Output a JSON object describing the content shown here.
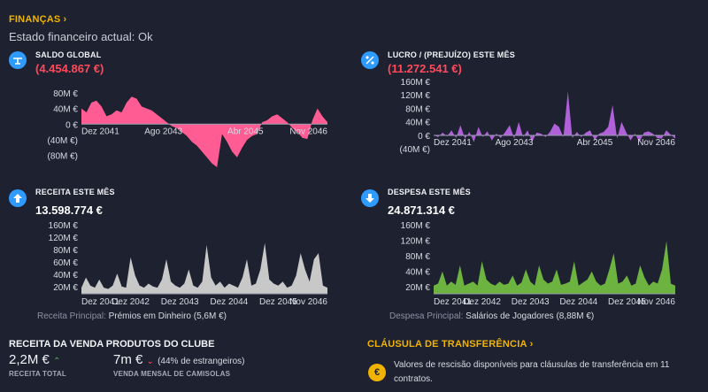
{
  "finances": {
    "title": "FINANÇAS",
    "status_label": "Estado financeiro actual:",
    "status_value": "Ok"
  },
  "panels": {
    "saldo": {
      "label": "SALDO GLOBAL",
      "value": "(4.454.867 €)",
      "color": "#ff4a5c",
      "icon": "balance-icon"
    },
    "lucro": {
      "label": "LUCRO / (PREJUÍZO) ESTE MÊS",
      "value": "(11.272.541 €)",
      "color": "#ff4a5c",
      "icon": "percent-icon"
    },
    "receita": {
      "label": "RECEITA ESTE MÊS",
      "value": "13.598.774 €",
      "icon": "arrow-up-icon",
      "caption_label": "Receita Principal:",
      "caption_value": "Prémios em Dinheiro (5,6M €)"
    },
    "despesa": {
      "label": "DESPESA ESTE MÊS",
      "value": "24.871.314 €",
      "icon": "arrow-down-icon",
      "caption_label": "Despesa Principal:",
      "caption_value": "Salários de Jogadores (8,88M €)"
    }
  },
  "merch": {
    "title": "RECEITA DA VENDA PRODUTOS DO CLUBE",
    "total_value": "2,2M €",
    "total_label": "RECEITA TOTAL",
    "shirts_value": "7m €",
    "shirts_note": "(44% de estrangeiros)",
    "shirts_label": "VENDA MENSAL DE CAMISOLAS"
  },
  "clause": {
    "title": "CLÁUSULA DE TRANSFERÊNCIA",
    "text": "Valores de rescisão disponíveis para cláusulas de transferência em 11 contratos."
  },
  "chart_data": [
    {
      "id": "saldo",
      "type": "area",
      "color": "#ff5c93",
      "y_ticks": [
        "80M €",
        "40M €",
        "0 €",
        "(40M €)",
        "(80M €)"
      ],
      "ylim": [
        -110,
        100
      ],
      "x_ticks": [
        "Dez 2041",
        "Ago 2043",
        "Abr 2045",
        "Nov 2046"
      ],
      "values": [
        40,
        30,
        55,
        60,
        45,
        20,
        25,
        35,
        30,
        55,
        70,
        65,
        45,
        40,
        35,
        25,
        15,
        5,
        -5,
        -10,
        -20,
        -30,
        -45,
        -55,
        -70,
        -85,
        -100,
        -110,
        -25,
        -45,
        -70,
        -85,
        -60,
        -40,
        -30,
        -25,
        5,
        10,
        20,
        25,
        15,
        5,
        -10,
        -20,
        -35,
        -38,
        10,
        40,
        20,
        5
      ]
    },
    {
      "id": "lucro",
      "type": "area",
      "color": "#b060d8",
      "y_ticks": [
        "160M €",
        "120M €",
        "80M €",
        "40M €",
        "0 €",
        "(40M €)"
      ],
      "ylim": [
        -50,
        160
      ],
      "x_ticks": [
        "Dez 2041",
        "Ago 2043",
        "Abr 2045",
        "Nov 2046"
      ],
      "values": [
        0,
        -5,
        8,
        -3,
        15,
        -8,
        30,
        -10,
        10,
        -20,
        25,
        -5,
        12,
        -15,
        5,
        -8,
        10,
        30,
        -10,
        40,
        -5,
        15,
        -20,
        8,
        5,
        -5,
        10,
        35,
        25,
        -5,
        130,
        -8,
        10,
        -5,
        8,
        15,
        -15,
        5,
        10,
        25,
        90,
        -10,
        40,
        10,
        -15,
        5,
        -20,
        8,
        12,
        5,
        -8,
        -10,
        15,
        2,
        -10
      ]
    },
    {
      "id": "receita",
      "type": "area",
      "color": "#c8c8c8",
      "y_ticks": [
        "160M €",
        "120M €",
        "80M €",
        "60M €",
        "40M €",
        "20M €"
      ],
      "ylim": [
        0,
        170
      ],
      "x_ticks": [
        "Dez 2041",
        "Dez 2042",
        "Dez 2043",
        "Dez 2044",
        "Dez 2045",
        "Nov 2046"
      ],
      "values": [
        15,
        40,
        20,
        15,
        35,
        15,
        12,
        20,
        50,
        18,
        15,
        90,
        45,
        20,
        15,
        25,
        18,
        15,
        35,
        85,
        30,
        20,
        15,
        25,
        60,
        20,
        15,
        30,
        120,
        40,
        20,
        30,
        15,
        25,
        20,
        15,
        40,
        85,
        20,
        25,
        60,
        125,
        35,
        25,
        20,
        30,
        15,
        20,
        45,
        100,
        60,
        30,
        85,
        100,
        20,
        15
      ]
    },
    {
      "id": "despesa",
      "type": "area",
      "color": "#6db33f",
      "y_ticks": [
        "160M €",
        "120M €",
        "80M €",
        "40M €",
        "20M €"
      ],
      "ylim": [
        0,
        170
      ],
      "x_ticks": [
        "Dez 2041",
        "Dez 2042",
        "Dez 2043",
        "Dez 2044",
        "Dez 2045",
        "Nov 2046"
      ],
      "values": [
        20,
        25,
        55,
        20,
        30,
        22,
        70,
        20,
        25,
        30,
        20,
        80,
        35,
        25,
        20,
        30,
        22,
        25,
        45,
        20,
        28,
        60,
        30,
        20,
        70,
        35,
        25,
        30,
        60,
        22,
        25,
        30,
        80,
        20,
        28,
        35,
        55,
        30,
        20,
        25,
        60,
        100,
        25,
        30,
        45,
        20,
        25,
        70,
        40,
        20,
        30,
        25,
        60,
        130,
        25,
        20
      ]
    }
  ]
}
